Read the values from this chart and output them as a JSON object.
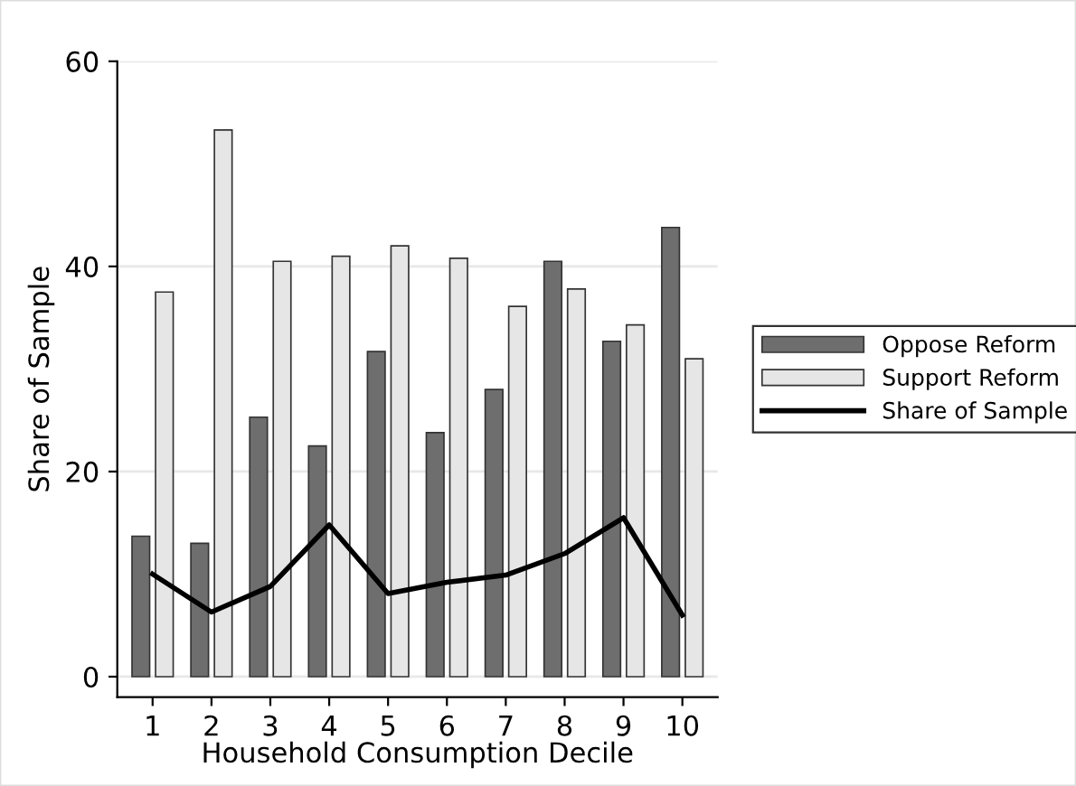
{
  "chart_data": {
    "type": "bar",
    "xlabel": "Household Consumption Decile",
    "ylabel": "Share of Sample",
    "categories": [
      "1",
      "2",
      "3",
      "4",
      "5",
      "6",
      "7",
      "8",
      "9",
      "10"
    ],
    "series": [
      {
        "name": "Oppose Reform",
        "color": "#6e6e6e",
        "values": [
          13.7,
          13.0,
          25.3,
          22.5,
          31.7,
          23.8,
          28.0,
          40.5,
          32.7,
          43.8
        ]
      },
      {
        "name": "Support Reform",
        "color": "#e6e6e6",
        "values": [
          37.5,
          53.3,
          40.5,
          41.0,
          42.0,
          40.8,
          36.1,
          37.8,
          34.3,
          31.0
        ]
      },
      {
        "name": "Share of Sample",
        "type": "line",
        "color": "#000000",
        "values": [
          10.0,
          6.3,
          8.8,
          14.8,
          8.1,
          9.2,
          9.9,
          12.0,
          15.5,
          6.0
        ]
      }
    ],
    "ylim": [
      -2,
      60
    ],
    "yticks": [
      0,
      20,
      40,
      60
    ],
    "grid": "y",
    "legend": "right",
    "marker": "none",
    "line_style": "solid"
  }
}
